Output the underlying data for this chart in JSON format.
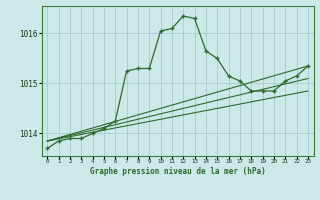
{
  "title": "Graphe pression niveau de la mer (hPa)",
  "background_color": "#cce8e8",
  "grid_color": "#aad0d0",
  "line_color": "#2d6a2d",
  "xlim": [
    -0.5,
    23.5
  ],
  "ylim": [
    1013.55,
    1016.55
  ],
  "yticks": [
    1014,
    1015,
    1016
  ],
  "xticks": [
    0,
    1,
    2,
    3,
    4,
    5,
    6,
    7,
    8,
    9,
    10,
    11,
    12,
    13,
    14,
    15,
    16,
    17,
    18,
    19,
    20,
    21,
    22,
    23
  ],
  "series1": [
    1013.7,
    1013.85,
    1013.9,
    1013.9,
    1014.0,
    1014.1,
    1014.25,
    1015.25,
    1015.3,
    1015.3,
    1016.05,
    1016.1,
    1016.35,
    1016.3,
    1015.65,
    1015.5,
    1015.15,
    1015.05,
    1014.85,
    1014.85,
    1014.85,
    1015.05,
    1015.15,
    1015.35
  ],
  "trend1_x": [
    0,
    23
  ],
  "trend1_y": [
    1013.85,
    1015.35
  ],
  "trend2_x": [
    0,
    23
  ],
  "trend2_y": [
    1013.85,
    1015.1
  ],
  "trend3_x": [
    0,
    23
  ],
  "trend3_y": [
    1013.85,
    1014.85
  ]
}
